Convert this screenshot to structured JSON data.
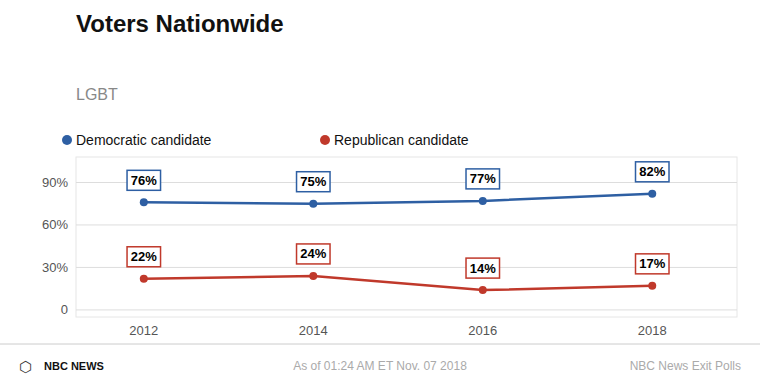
{
  "chart_data": {
    "type": "line",
    "title": "Voters Nationwide",
    "subtitle": "LGBT",
    "x": [
      2012,
      2014,
      2016,
      2018
    ],
    "series": [
      {
        "name": "Democratic candidate",
        "color": "#2e5fa3",
        "values": [
          76,
          75,
          77,
          82
        ],
        "value_labels": [
          "76%",
          "75%",
          "77%",
          "82%"
        ]
      },
      {
        "name": "Republican candidate",
        "color": "#c0392b",
        "values": [
          22,
          24,
          14,
          17
        ],
        "value_labels": [
          "22%",
          "24%",
          "14%",
          "17%"
        ]
      }
    ],
    "xlim": [
      2011.2,
      2019
    ],
    "xticks": [
      2012,
      2014,
      2016,
      2018
    ],
    "ylim": [
      -5,
      108
    ],
    "yticks": [
      0,
      {
        "value": 30,
        "label": "30%"
      },
      {
        "value": 60,
        "label": "60%"
      },
      {
        "value": 90,
        "label": "90%"
      }
    ],
    "grid": true,
    "legend": "top-left",
    "data_labels": true,
    "marker": "circle",
    "line_style": "solid",
    "annotations": [
      "⬡",
      "NBC NEWS",
      "As of 01:24 AM ET Nov. 07 2018",
      "NBC News Exit Polls"
    ]
  }
}
